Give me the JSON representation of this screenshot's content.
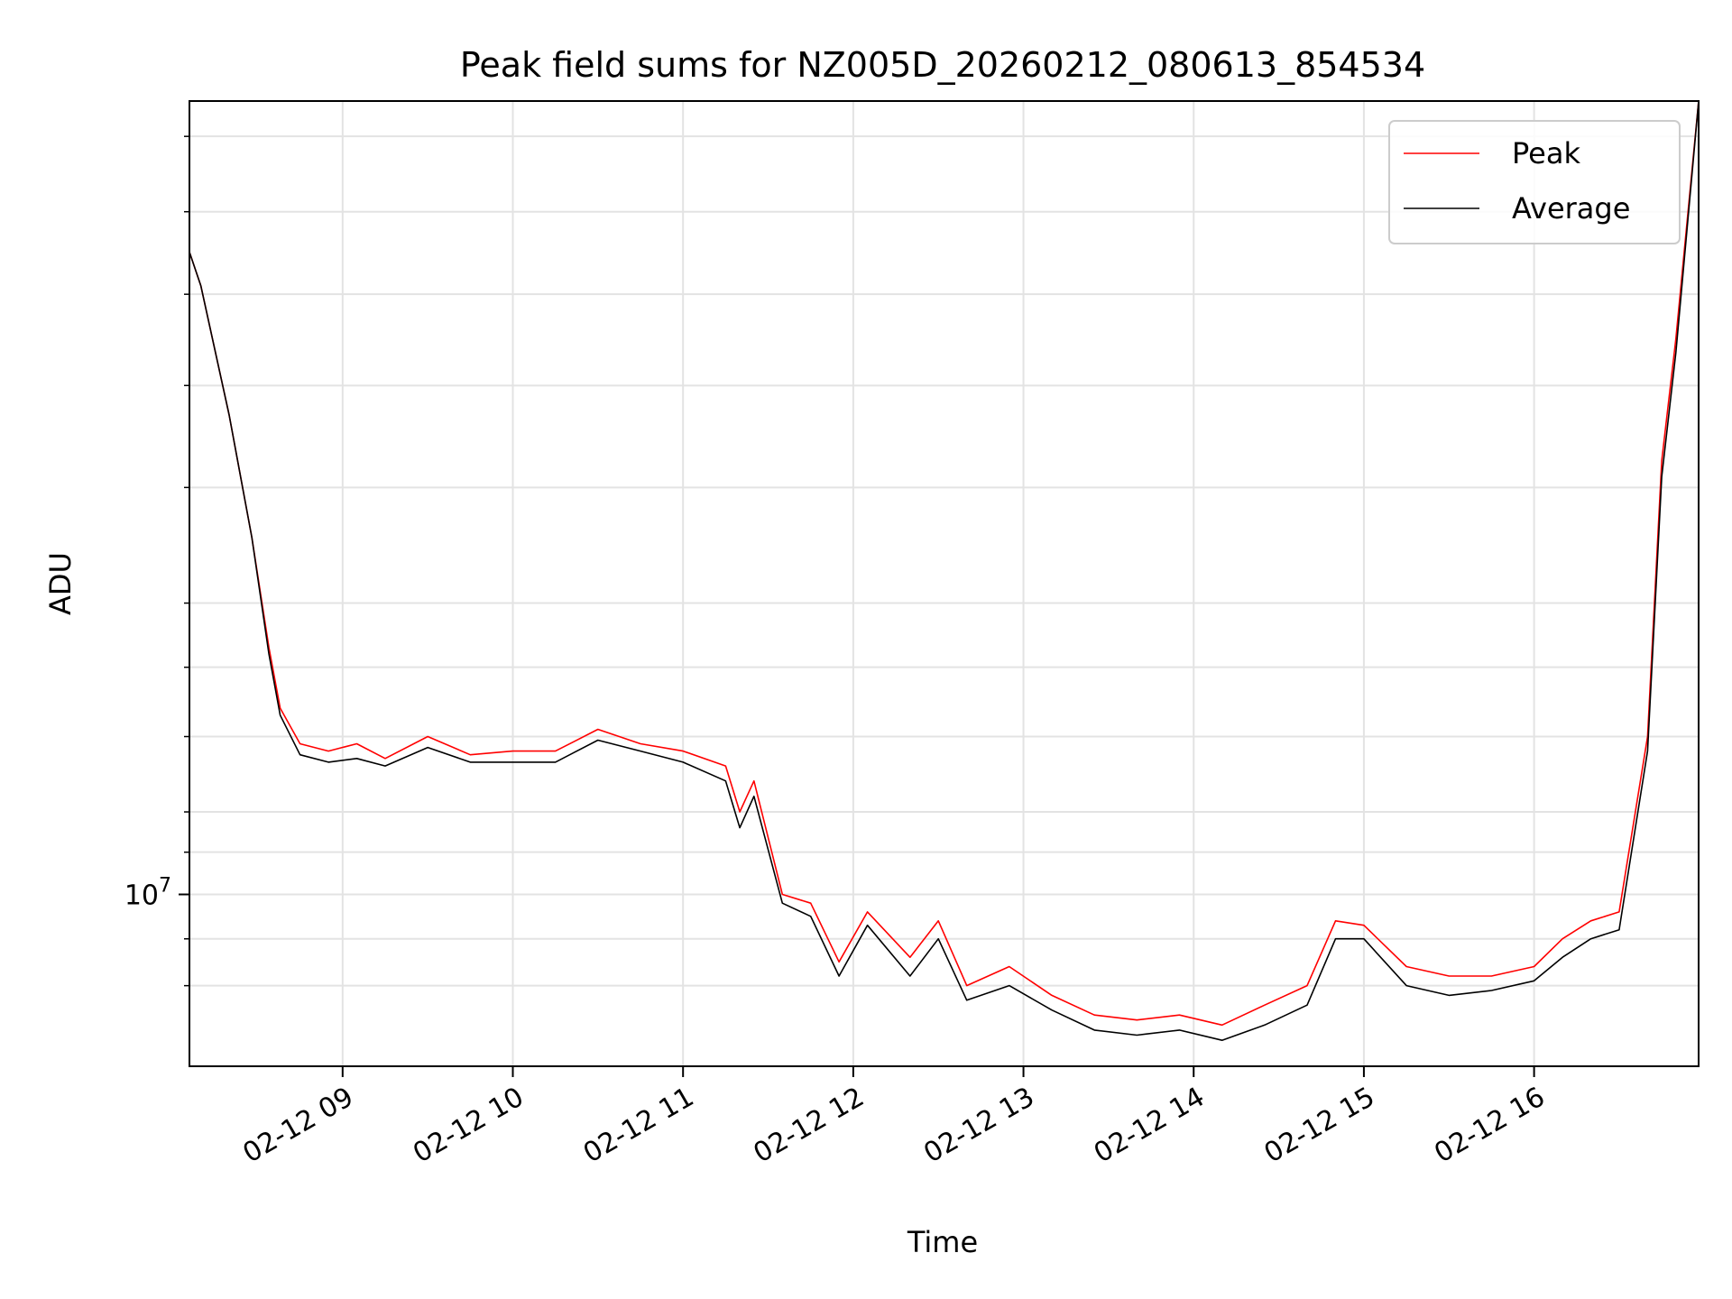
{
  "chart_data": {
    "type": "line",
    "title": "Peak field sums for NZ005D_20260212_080613_854534",
    "xlabel": "Time",
    "ylabel": "ADU",
    "yscale": "log",
    "grid": true,
    "legend_placement": "top-right",
    "x_unit": "hours",
    "xlim": [
      "02-12 08:06",
      "02-12 16:58"
    ],
    "ylim": [
      8200000,
      25000000
    ],
    "x_ticks": [
      {
        "label": "02-12 09",
        "value": 9
      },
      {
        "label": "02-12 10",
        "value": 10
      },
      {
        "label": "02-12 11",
        "value": 11
      },
      {
        "label": "02-12 12",
        "value": 12
      },
      {
        "label": "02-12 13",
        "value": 13
      },
      {
        "label": "02-12 14",
        "value": 14
      },
      {
        "label": "02-12 15",
        "value": 15
      },
      {
        "label": "02-12 16",
        "value": 16
      }
    ],
    "y_major_ticks": [
      {
        "label": "10",
        "exponent": "7",
        "value": 10000000
      }
    ],
    "y_minor_ticks": [
      9000000,
      9500000,
      10500000,
      11000000,
      12000000,
      13000000,
      14000000,
      16000000,
      18000000,
      20000000,
      22000000,
      24000000
    ],
    "series": [
      {
        "name": "Peak",
        "color": "#ff0000",
        "x": [
          "02-12 08:06",
          "02-12 08:10",
          "02-12 08:20",
          "02-12 08:28",
          "02-12 08:34",
          "02-12 08:38",
          "02-12 08:45",
          "02-12 08:55",
          "02-12 09:05",
          "02-12 09:15",
          "02-12 09:30",
          "02-12 09:45",
          "02-12 10:00",
          "02-12 10:15",
          "02-12 10:30",
          "02-12 10:45",
          "02-12 11:00",
          "02-12 11:15",
          "02-12 11:20",
          "02-12 11:25",
          "02-12 11:35",
          "02-12 11:45",
          "02-12 11:55",
          "02-12 12:05",
          "02-12 12:20",
          "02-12 12:30",
          "02-12 12:40",
          "02-12 12:55",
          "02-12 13:10",
          "02-12 13:25",
          "02-12 13:40",
          "02-12 13:55",
          "02-12 14:10",
          "02-12 14:25",
          "02-12 14:40",
          "02-12 14:50",
          "02-12 15:00",
          "02-12 15:15",
          "02-12 15:30",
          "02-12 15:45",
          "02-12 16:00",
          "02-12 16:10",
          "02-12 16:20",
          "02-12 16:30",
          "02-12 16:40",
          "02-12 16:45",
          "02-12 16:50",
          "02-12 16:58"
        ],
        "values": [
          21000000,
          20200000,
          17400000,
          15100000,
          13300000,
          12400000,
          11900000,
          11800000,
          11900000,
          11700000,
          12000000,
          11750000,
          11800000,
          11800000,
          12100000,
          11900000,
          11800000,
          11600000,
          11000000,
          11400000,
          10000000,
          9900000,
          9250000,
          9800000,
          9300000,
          9700000,
          9000000,
          9200000,
          8900000,
          8700000,
          8650000,
          8700000,
          8600000,
          8800000,
          9000000,
          9700000,
          9650000,
          9200000,
          9100000,
          9100000,
          9200000,
          9500000,
          9700000,
          9800000,
          12000000,
          16500000,
          19000000,
          25000000
        ]
      },
      {
        "name": "Average",
        "color": "#000000",
        "x": [
          "02-12 08:06",
          "02-12 08:10",
          "02-12 08:20",
          "02-12 08:28",
          "02-12 08:34",
          "02-12 08:38",
          "02-12 08:45",
          "02-12 08:55",
          "02-12 09:05",
          "02-12 09:15",
          "02-12 09:30",
          "02-12 09:45",
          "02-12 10:00",
          "02-12 10:15",
          "02-12 10:30",
          "02-12 10:45",
          "02-12 11:00",
          "02-12 11:15",
          "02-12 11:20",
          "02-12 11:25",
          "02-12 11:35",
          "02-12 11:45",
          "02-12 11:55",
          "02-12 12:05",
          "02-12 12:20",
          "02-12 12:30",
          "02-12 12:40",
          "02-12 12:55",
          "02-12 13:10",
          "02-12 13:25",
          "02-12 13:40",
          "02-12 13:55",
          "02-12 14:10",
          "02-12 14:25",
          "02-12 14:40",
          "02-12 14:50",
          "02-12 15:00",
          "02-12 15:15",
          "02-12 15:30",
          "02-12 15:45",
          "02-12 16:00",
          "02-12 16:10",
          "02-12 16:20",
          "02-12 16:30",
          "02-12 16:40",
          "02-12 16:45",
          "02-12 16:50",
          "02-12 16:58"
        ],
        "values": [
          21000000,
          20200000,
          17400000,
          15100000,
          13200000,
          12300000,
          11750000,
          11650000,
          11700000,
          11600000,
          11850000,
          11650000,
          11650000,
          11650000,
          11950000,
          11800000,
          11650000,
          11400000,
          10800000,
          11200000,
          9900000,
          9750000,
          9100000,
          9650000,
          9100000,
          9500000,
          8850000,
          9000000,
          8750000,
          8550000,
          8500000,
          8550000,
          8450000,
          8600000,
          8800000,
          9500000,
          9500000,
          9000000,
          8900000,
          8950000,
          9050000,
          9300000,
          9500000,
          9600000,
          11800000,
          16200000,
          18700000,
          25000000
        ]
      }
    ]
  }
}
